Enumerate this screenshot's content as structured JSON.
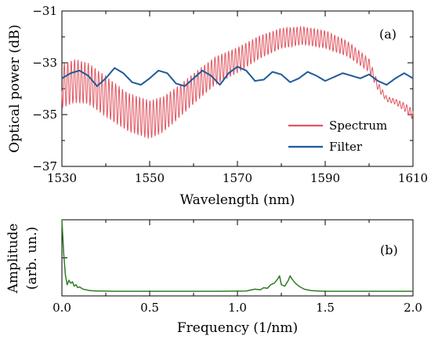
{
  "chart_data": [
    {
      "type": "line",
      "panel_label": "(a)",
      "xlabel": "Wavelength (nm)",
      "ylabel": "Optical power (dB)",
      "xlim": [
        1530,
        1610
      ],
      "ylim": [
        -37,
        -31
      ],
      "x_ticks": [
        1530,
        1550,
        1570,
        1590,
        1610
      ],
      "y_ticks": [
        -37,
        -35,
        -33,
        -31
      ],
      "legend": "lower-right",
      "grid": false,
      "series": [
        {
          "name": "Spectrum",
          "color": "#e05560",
          "envelope_x": [
            1530,
            1533,
            1536,
            1540,
            1545,
            1550,
            1553,
            1556,
            1560,
            1565,
            1570,
            1575,
            1580,
            1585,
            1590,
            1595,
            1600,
            1602,
            1604,
            1606,
            1608,
            1610
          ],
          "envelope_center": [
            -33.9,
            -33.7,
            -33.8,
            -34.3,
            -34.9,
            -35.2,
            -35.0,
            -34.6,
            -34.0,
            -33.3,
            -32.9,
            -32.4,
            -32.05,
            -31.95,
            -32.1,
            -32.45,
            -33.1,
            -33.9,
            -34.4,
            -34.5,
            -34.7,
            -35.0
          ],
          "ripple_amplitude": [
            0.85,
            0.85,
            0.8,
            0.8,
            0.75,
            0.75,
            0.7,
            0.65,
            0.6,
            0.55,
            0.5,
            0.45,
            0.4,
            0.35,
            0.35,
            0.3,
            0.25,
            0.15,
            0.1,
            0.1,
            0.15,
            0.2
          ],
          "ripple_period_nm": 0.78
        },
        {
          "name": "Filter",
          "color": "#1f5b9a",
          "x": [
            1530,
            1532,
            1534,
            1536,
            1538,
            1540,
            1542,
            1544,
            1546,
            1548,
            1550,
            1552,
            1554,
            1556,
            1558,
            1560,
            1562,
            1564,
            1566,
            1568,
            1570,
            1572,
            1574,
            1576,
            1578,
            1580,
            1582,
            1584,
            1586,
            1588,
            1590,
            1592,
            1594,
            1596,
            1598,
            1600,
            1602,
            1604,
            1606,
            1608,
            1610
          ],
          "y": [
            -33.6,
            -33.4,
            -33.3,
            -33.5,
            -33.9,
            -33.6,
            -33.2,
            -33.4,
            -33.75,
            -33.85,
            -33.6,
            -33.3,
            -33.4,
            -33.8,
            -33.9,
            -33.6,
            -33.3,
            -33.5,
            -33.85,
            -33.4,
            -33.15,
            -33.3,
            -33.7,
            -33.65,
            -33.35,
            -33.45,
            -33.75,
            -33.6,
            -33.35,
            -33.5,
            -33.7,
            -33.55,
            -33.4,
            -33.5,
            -33.6,
            -33.45,
            -33.7,
            -33.85,
            -33.6,
            -33.4,
            -33.6
          ]
        }
      ]
    },
    {
      "type": "line",
      "panel_label": "(b)",
      "xlabel": "Frequency (1/nm)",
      "ylabel": [
        "Amplitude",
        "(arb. un.)"
      ],
      "xlim": [
        0.0,
        2.0
      ],
      "ylim": [
        0,
        1
      ],
      "x_ticks": [
        "0.0",
        "0.5",
        "1.0",
        "1.5",
        "2.0"
      ],
      "grid": false,
      "series": [
        {
          "color": "#2e7d24",
          "x": [
            0.0,
            0.01,
            0.02,
            0.03,
            0.04,
            0.05,
            0.06,
            0.07,
            0.08,
            0.09,
            0.1,
            0.12,
            0.14,
            0.16,
            0.2,
            0.3,
            0.5,
            0.7,
            0.9,
            1.05,
            1.1,
            1.13,
            1.15,
            1.17,
            1.19,
            1.21,
            1.23,
            1.24,
            1.25,
            1.27,
            1.29,
            1.3,
            1.31,
            1.33,
            1.35,
            1.38,
            1.42,
            1.46,
            1.5,
            1.6,
            1.8,
            2.0
          ],
          "y": [
            1.0,
            0.55,
            0.25,
            0.12,
            0.18,
            0.14,
            0.16,
            0.1,
            0.12,
            0.08,
            0.09,
            0.06,
            0.05,
            0.04,
            0.035,
            0.03,
            0.03,
            0.03,
            0.03,
            0.035,
            0.06,
            0.05,
            0.08,
            0.07,
            0.12,
            0.14,
            0.2,
            0.24,
            0.12,
            0.1,
            0.18,
            0.24,
            0.2,
            0.14,
            0.1,
            0.06,
            0.04,
            0.035,
            0.03,
            0.03,
            0.03,
            0.03
          ]
        }
      ]
    }
  ]
}
